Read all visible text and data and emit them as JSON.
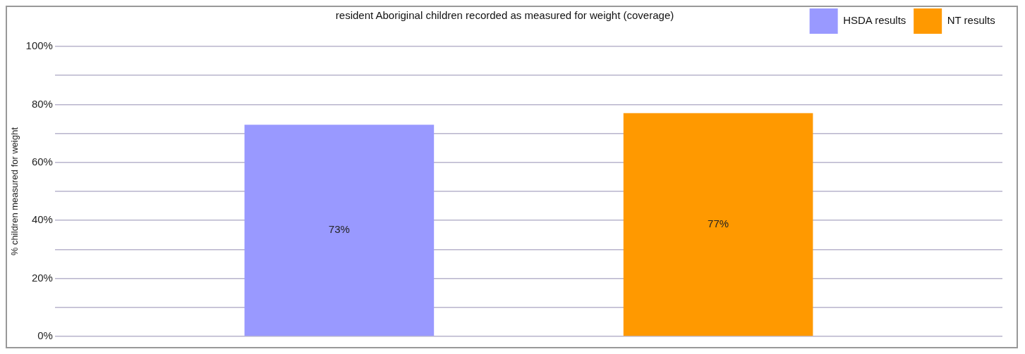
{
  "chart_data": {
    "type": "bar",
    "title": "resident Aboriginal children recorded as measured for weight (coverage)",
    "ylabel": "% children measured for weight",
    "categories": [
      null
    ],
    "series": [
      {
        "name": "HSDA results",
        "color": "#9999ff",
        "values": [
          73
        ]
      },
      {
        "name": "NT results",
        "color": "#ff9900",
        "values": [
          77
        ]
      }
    ],
    "ylim": [
      0,
      100
    ],
    "yticks": [
      {
        "value": 0,
        "label": "0%"
      },
      {
        "value": 10,
        "label": null
      },
      {
        "value": 20,
        "label": "20%"
      },
      {
        "value": 30,
        "label": null
      },
      {
        "value": 40,
        "label": "40%"
      },
      {
        "value": 50,
        "label": null
      },
      {
        "value": 60,
        "label": "60%"
      },
      {
        "value": 70,
        "label": null
      },
      {
        "value": 80,
        "label": "80%"
      },
      {
        "value": 90,
        "label": null
      },
      {
        "value": 100,
        "label": "100%"
      }
    ],
    "value_labels": [
      "73%",
      "77%"
    ],
    "grid": "y",
    "legend": "top right",
    "tick_labels": "y"
  }
}
